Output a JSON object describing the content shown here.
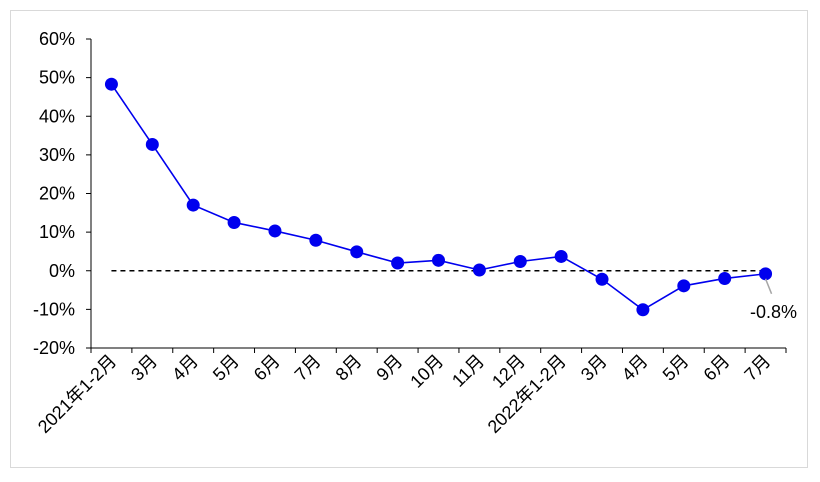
{
  "chart_data": {
    "type": "line",
    "title": "",
    "xlabel": "",
    "ylabel": "",
    "categories": [
      "2021年1-2月",
      "3月",
      "4月",
      "5月",
      "6月",
      "7月",
      "8月",
      "9月",
      "10月",
      "11月",
      "12月",
      "2022年1-2月",
      "3月",
      "4月",
      "5月",
      "6月",
      "7月"
    ],
    "series": [
      {
        "values": [
          48.3,
          32.7,
          17.0,
          12.5,
          10.3,
          7.9,
          4.9,
          2.0,
          2.7,
          0.2,
          2.4,
          3.7,
          -2.2,
          -10.1,
          -3.9,
          -2.0,
          -0.8
        ]
      }
    ],
    "ylim": [
      -20,
      60
    ],
    "yticks": [
      -20,
      -10,
      0,
      10,
      20,
      30,
      40,
      50,
      60
    ],
    "ytick_labels": [
      "-20%",
      "-10%",
      "0%",
      "10%",
      "20%",
      "30%",
      "40%",
      "50%",
      "60%"
    ],
    "zero_line": "dashed",
    "grid": false,
    "legend": "none",
    "annotation": {
      "text": "-0.8%"
    },
    "colors": {
      "series": "#0000ee",
      "axis": "#000000",
      "border": "#d9d9d9"
    }
  }
}
